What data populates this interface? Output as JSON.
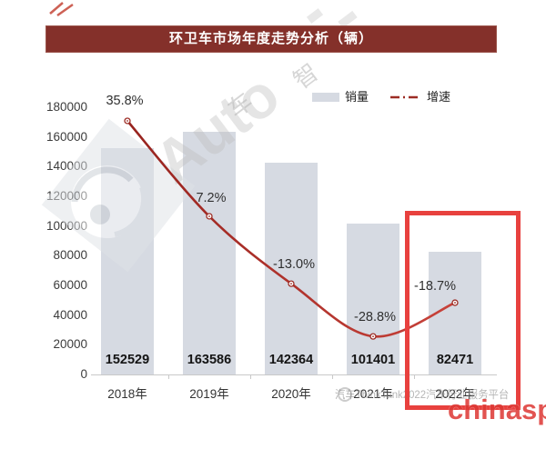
{
  "title": "环卫车市场年度走势分析（辆）",
  "legend": {
    "sales_label": "销量",
    "growth_label": "增速"
  },
  "chart_data": {
    "type": "bar",
    "title": "环卫车市场年度走势分析（辆）",
    "categories": [
      "2018年",
      "2019年",
      "2020年",
      "2021年",
      "2022年"
    ],
    "series": [
      {
        "name": "销量",
        "type": "bar",
        "values": [
          152529,
          163586,
          142364,
          101401,
          82471
        ],
        "value_labels": [
          "152529",
          "163586",
          "142364",
          "101401",
          "82471"
        ]
      },
      {
        "name": "增速",
        "type": "line",
        "values_pct": [
          35.8,
          7.2,
          -13.0,
          -28.8,
          -18.7
        ],
        "point_labels": [
          "35.8%",
          "7.2%",
          "-13.0%",
          "-28.8%",
          "-18.7%"
        ]
      }
    ],
    "y_axis": {
      "min": 0,
      "max": 180000,
      "step": 20000,
      "tick_labels": [
        "0",
        "20000",
        "40000",
        "60000",
        "80000",
        "100000",
        "120000",
        "140000",
        "160000",
        "180000"
      ]
    },
    "xlabel": "",
    "ylabel": "",
    "legend_position": "top-right",
    "grid": false,
    "highlighted_category": "2022年"
  },
  "colors": {
    "title_bg": "#84302a",
    "bar": "#d6dae2",
    "line_dark": "#97231e",
    "line_bright": "#c8423a",
    "highlight_box": "#e8413e",
    "watermark_red": "#dd3733"
  },
  "watermarks": {
    "diagonal_text": "Auto",
    "diagonal_cn_1": "车",
    "diagonal_cn_2": "智",
    "bottom_strip": "汽车ThinkTank2022汽车行业服务平台",
    "brand_red": "chinaspv"
  }
}
